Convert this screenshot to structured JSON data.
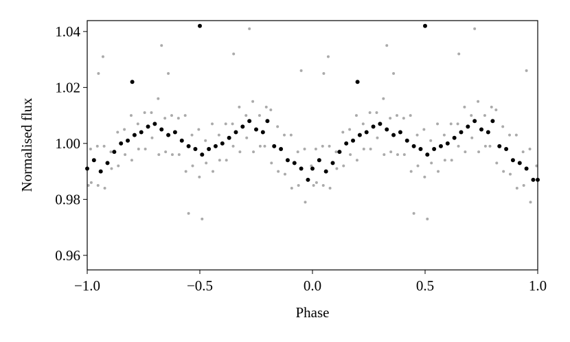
{
  "chart_data": {
    "type": "scatter",
    "x_label": "Phase",
    "y_label": "Normalised flux",
    "xlim": [
      -1.0,
      1.0
    ],
    "ylim": [
      0.9548,
      1.0439
    ],
    "xticks": [
      {
        "value": -1.0,
        "label": "−1.0"
      },
      {
        "value": -0.5,
        "label": "−0.5"
      },
      {
        "value": 0.0,
        "label": "0.0"
      },
      {
        "value": 0.5,
        "label": "0.5"
      },
      {
        "value": 1.0,
        "label": "1.0"
      }
    ],
    "yticks": [
      0.96,
      0.98,
      {
        "value": 1.0,
        "label": "1.00"
      },
      1.02,
      1.04
    ],
    "series": [
      {
        "color": "#aaaaaa",
        "x": [
          -0.985,
          -0.995,
          -0.955,
          -0.982,
          -0.925,
          -0.952,
          -0.895,
          -0.922,
          -0.865,
          -0.892,
          -0.835,
          -0.862,
          -0.805,
          -0.832,
          -0.775,
          -0.802,
          -0.745,
          -0.772,
          -0.715,
          -0.742,
          -0.685,
          -0.712,
          -0.655,
          -0.682,
          -0.625,
          -0.652,
          -0.595,
          -0.622,
          -0.565,
          -0.592,
          -0.535,
          -0.562,
          -0.505,
          -0.532,
          -0.475,
          -0.502,
          -0.445,
          -0.472,
          -0.415,
          -0.442,
          -0.385,
          -0.412,
          -0.355,
          -0.382,
          -0.325,
          -0.352,
          -0.295,
          -0.322,
          -0.265,
          -0.292,
          -0.235,
          -0.262,
          -0.205,
          -0.232,
          -0.185,
          -0.212,
          -0.155,
          -0.182,
          -0.125,
          -0.152,
          -0.095,
          -0.122,
          -0.065,
          -0.092,
          -0.035,
          -0.062,
          -0.005,
          -0.032,
          -0.28,
          -0.67,
          -0.93,
          -0.95,
          -0.55,
          -0.49,
          -0.05,
          -0.35,
          -0.64,
          0.015,
          0.005,
          0.045,
          0.018,
          0.075,
          0.048,
          0.105,
          0.078,
          0.135,
          0.108,
          0.165,
          0.138,
          0.195,
          0.168,
          0.225,
          0.198,
          0.255,
          0.228,
          0.285,
          0.258,
          0.315,
          0.288,
          0.345,
          0.318,
          0.375,
          0.348,
          0.405,
          0.378,
          0.435,
          0.408,
          0.465,
          0.438,
          0.495,
          0.468,
          0.525,
          0.498,
          0.555,
          0.528,
          0.585,
          0.558,
          0.615,
          0.588,
          0.645,
          0.618,
          0.675,
          0.648,
          0.705,
          0.678,
          0.735,
          0.708,
          0.765,
          0.738,
          0.795,
          0.768,
          0.815,
          0.788,
          0.845,
          0.818,
          0.875,
          0.848,
          0.905,
          0.878,
          0.935,
          0.908,
          0.965,
          0.938,
          0.995,
          0.968,
          0.72,
          0.33,
          0.07,
          0.05,
          0.45,
          0.51,
          0.95,
          0.65,
          0.36
        ],
        "y": [
          0.998,
          0.985,
          0.999,
          0.986,
          0.999,
          0.985,
          0.997,
          0.984,
          1.004,
          0.991,
          1.005,
          0.992,
          1.01,
          0.996,
          1.007,
          0.994,
          1.011,
          0.998,
          1.011,
          0.998,
          1.016,
          1.002,
          1.009,
          0.996,
          1.01,
          0.997,
          1.009,
          0.996,
          1.01,
          0.996,
          1.003,
          0.99,
          1.005,
          0.992,
          1.001,
          0.988,
          1.007,
          0.993,
          1.003,
          0.99,
          1.007,
          0.994,
          1.007,
          0.994,
          1.013,
          0.999,
          1.01,
          0.997,
          1.015,
          1.002,
          1.01,
          0.997,
          1.013,
          0.999,
          1.012,
          0.999,
          1.006,
          0.993,
          1.003,
          0.99,
          1.003,
          0.989,
          0.997,
          0.984,
          0.998,
          0.985,
          0.992,
          0.979,
          1.041,
          1.035,
          1.031,
          1.025,
          0.975,
          0.973,
          1.026,
          1.032,
          1.025,
          0.998,
          0.985,
          0.999,
          0.986,
          0.999,
          0.985,
          0.997,
          0.984,
          1.004,
          0.991,
          1.005,
          0.992,
          1.01,
          0.996,
          1.007,
          0.994,
          1.011,
          0.998,
          1.011,
          0.998,
          1.016,
          1.002,
          1.009,
          0.996,
          1.01,
          0.997,
          1.009,
          0.996,
          1.01,
          0.996,
          1.003,
          0.99,
          1.005,
          0.992,
          1.001,
          0.988,
          1.007,
          0.993,
          1.003,
          0.99,
          1.007,
          0.994,
          1.007,
          0.994,
          1.013,
          0.999,
          1.01,
          0.997,
          1.015,
          1.002,
          1.01,
          0.997,
          1.013,
          0.999,
          1.012,
          0.999,
          1.006,
          0.993,
          1.003,
          0.99,
          1.003,
          0.989,
          0.997,
          0.984,
          0.998,
          0.985,
          0.992,
          0.979,
          1.041,
          1.035,
          1.031,
          1.025,
          0.975,
          0.973,
          1.026,
          1.032,
          1.025
        ]
      },
      {
        "color": "#000000",
        "x": [
          -1.0,
          -0.97,
          -0.94,
          -0.91,
          -0.88,
          -0.85,
          -0.82,
          -0.79,
          -0.76,
          -0.73,
          -0.7,
          -0.67,
          -0.64,
          -0.61,
          -0.58,
          -0.55,
          -0.52,
          -0.49,
          -0.46,
          -0.43,
          -0.4,
          -0.37,
          -0.34,
          -0.31,
          -0.28,
          -0.25,
          -0.22,
          -0.2,
          -0.17,
          -0.14,
          -0.11,
          -0.08,
          -0.05,
          -0.02,
          -0.8,
          -0.5,
          0.0,
          0.03,
          0.06,
          0.09,
          0.12,
          0.15,
          0.18,
          0.21,
          0.24,
          0.27,
          0.3,
          0.33,
          0.36,
          0.39,
          0.42,
          0.45,
          0.48,
          0.51,
          0.54,
          0.57,
          0.6,
          0.63,
          0.66,
          0.69,
          0.72,
          0.75,
          0.78,
          0.8,
          0.83,
          0.86,
          0.89,
          0.92,
          0.95,
          0.98,
          0.2,
          0.5,
          1.0
        ],
        "y": [
          0.991,
          0.994,
          0.99,
          0.993,
          0.997,
          1.0,
          1.001,
          1.003,
          1.004,
          1.006,
          1.007,
          1.005,
          1.003,
          1.004,
          1.001,
          0.999,
          0.998,
          0.996,
          0.998,
          0.999,
          1.0,
          1.002,
          1.004,
          1.006,
          1.008,
          1.005,
          1.004,
          1.008,
          0.999,
          0.998,
          0.994,
          0.993,
          0.991,
          0.987,
          1.022,
          1.042,
          0.991,
          0.994,
          0.99,
          0.993,
          0.997,
          1.0,
          1.001,
          1.003,
          1.004,
          1.006,
          1.007,
          1.005,
          1.003,
          1.004,
          1.001,
          0.999,
          0.998,
          0.996,
          0.998,
          0.999,
          1.0,
          1.002,
          1.004,
          1.006,
          1.008,
          1.005,
          1.004,
          1.008,
          0.999,
          0.998,
          0.994,
          0.993,
          0.991,
          0.987,
          1.022,
          1.042,
          0.987
        ]
      }
    ]
  }
}
